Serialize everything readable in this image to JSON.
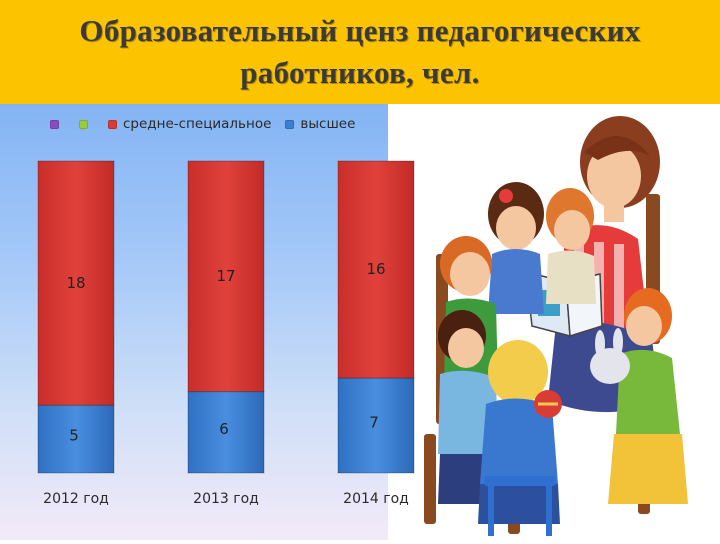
{
  "page": {
    "title": "Образовательный ценз педагогических работников, чел."
  },
  "legend": {
    "items": [
      {
        "label": "",
        "color": "#8a4dbd"
      },
      {
        "label": "",
        "color": "#9acc3a"
      },
      {
        "label": "средне-специальное",
        "color": "#d93b35"
      },
      {
        "label": "высшее",
        "color": "#3a7fd0"
      }
    ]
  },
  "chart_data": {
    "type": "bar",
    "stacked": true,
    "categories": [
      "2012 год",
      "2013 год",
      "2014 год"
    ],
    "series": [
      {
        "name": "высшее",
        "values": [
          5,
          6,
          7
        ],
        "color": "#3a7fd0"
      },
      {
        "name": "средне-специальное",
        "values": [
          18,
          17,
          16
        ],
        "color": "#d93b35"
      }
    ],
    "title": "",
    "xlabel": "",
    "ylabel": "",
    "ylim": [
      0,
      23
    ],
    "grid": false,
    "legend_position": "top-left"
  },
  "illustration": {
    "icon": "teacher-reading-to-children-illustration"
  }
}
